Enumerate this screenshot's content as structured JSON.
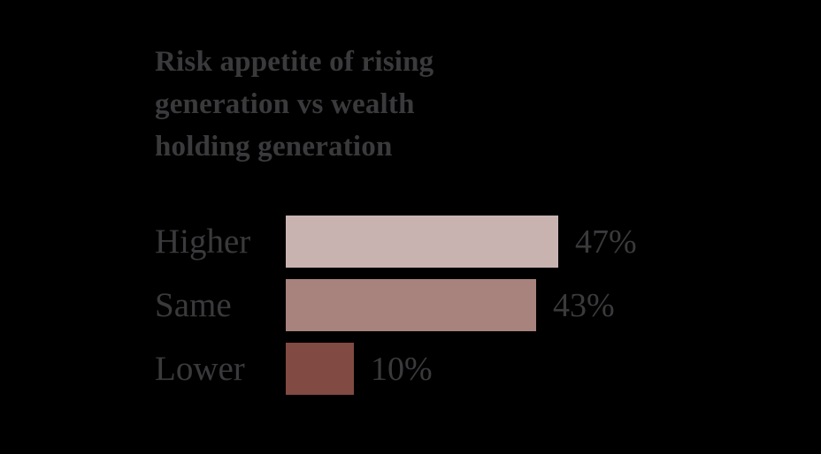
{
  "colors": {
    "background": "#000000",
    "text": "#3a3a3d",
    "bar_higher": "#c9b3b1",
    "bar_same": "#a8827d",
    "bar_lower": "#814a42"
  },
  "chart_data": {
    "type": "bar",
    "orientation": "horizontal",
    "title": "Risk appetite of rising generation vs wealth holding generation",
    "title_lines": [
      "Risk appetite of rising",
      "generation vs wealth",
      "holding generation"
    ],
    "categories": [
      "Higher",
      "Same",
      "Lower"
    ],
    "values": [
      47,
      43,
      10
    ],
    "value_labels": [
      "47%",
      "43%",
      "10%"
    ],
    "bar_colors": [
      "#c9b3b1",
      "#a8827d",
      "#814a42"
    ],
    "xlabel": "",
    "ylabel": "",
    "xlim": [
      0,
      50
    ],
    "grid": false,
    "legend": false,
    "value_label_position": "right-of-bar",
    "category_label_position": "left-of-bar"
  }
}
